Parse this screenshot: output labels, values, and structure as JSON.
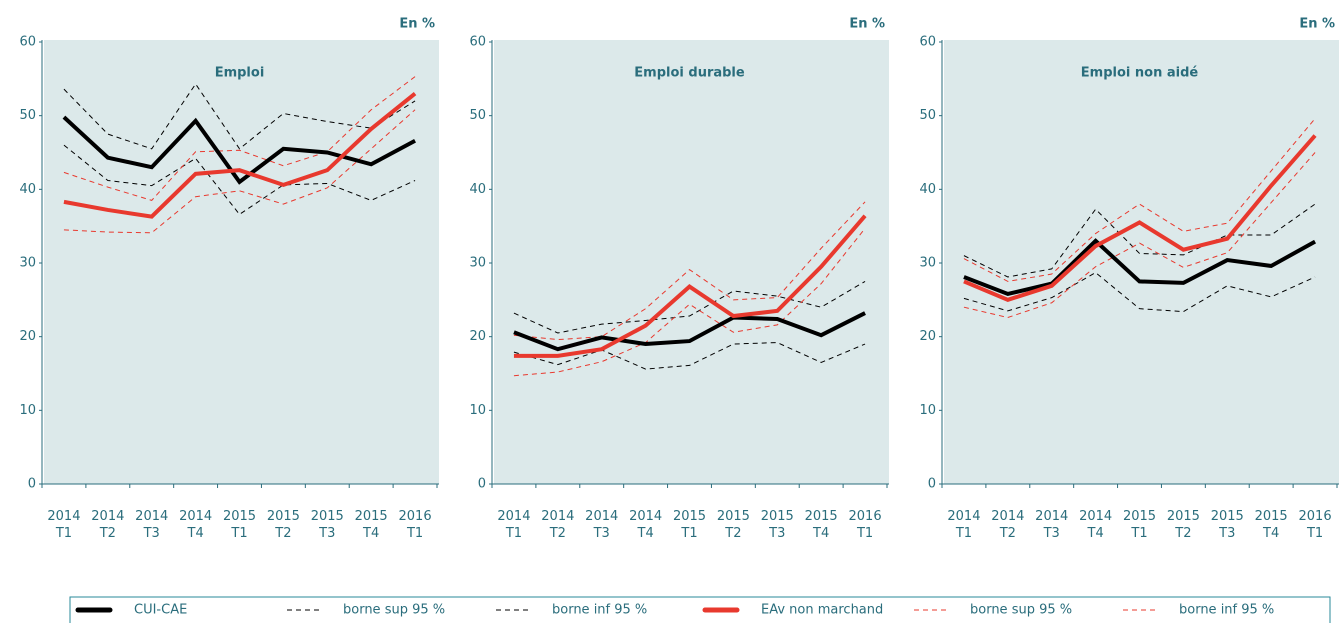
{
  "chart_data": [
    {
      "type": "line",
      "title": "Emploi",
      "unit": "En %",
      "categories": [
        "2014 T1",
        "2014 T2",
        "2014 T3",
        "2014 T4",
        "2015 T1",
        "2015 T2",
        "2015 T3",
        "2015 T4",
        "2016 T1"
      ],
      "ylim": [
        0,
        60
      ],
      "yticks": [
        0,
        10,
        20,
        30,
        40,
        50,
        60
      ],
      "series": [
        {
          "name": "CUI-CAE",
          "color": "#000000",
          "dashed": false,
          "values": [
            49.8,
            44.3,
            43.0,
            49.3,
            41.0,
            45.5,
            45.0,
            43.4,
            46.6
          ]
        },
        {
          "name": "borne sup 95 %",
          "color": "#000000",
          "dashed": true,
          "values": [
            53.6,
            47.5,
            45.5,
            54.3,
            45.5,
            50.3,
            49.2,
            48.3,
            52.0
          ]
        },
        {
          "name": "borne inf 95 %",
          "color": "#000000",
          "dashed": true,
          "values": [
            46.0,
            41.2,
            40.5,
            44.2,
            36.6,
            40.6,
            40.8,
            38.5,
            41.2
          ]
        },
        {
          "name": "EAv non marchand",
          "color": "#e8392e",
          "dashed": false,
          "values": [
            38.3,
            37.2,
            36.3,
            42.1,
            42.6,
            40.6,
            42.6,
            48.2,
            53.0
          ]
        },
        {
          "name": "borne sup 95 %",
          "color": "#e8392e",
          "dashed": true,
          "values": [
            42.3,
            40.3,
            38.5,
            45.1,
            45.3,
            43.2,
            45.1,
            50.8,
            55.3
          ]
        },
        {
          "name": "borne inf 95 %",
          "color": "#e8392e",
          "dashed": true,
          "values": [
            34.5,
            34.2,
            34.1,
            39.0,
            39.8,
            38.0,
            40.2,
            45.5,
            50.8
          ]
        }
      ]
    },
    {
      "type": "line",
      "title": "Emploi durable",
      "unit": "En %",
      "categories": [
        "2014 T1",
        "2014 T2",
        "2014 T3",
        "2014 T4",
        "2015 T1",
        "2015 T2",
        "2015 T3",
        "2015 T4",
        "2016 T1"
      ],
      "ylim": [
        0,
        60
      ],
      "yticks": [
        0,
        10,
        20,
        30,
        40,
        50,
        60
      ],
      "series": [
        {
          "name": "CUI-CAE",
          "color": "#000000",
          "dashed": false,
          "values": [
            20.6,
            18.3,
            19.9,
            19.0,
            19.4,
            22.6,
            22.4,
            20.2,
            23.2
          ]
        },
        {
          "name": "borne sup 95 %",
          "color": "#000000",
          "dashed": true,
          "values": [
            23.2,
            20.5,
            21.7,
            22.2,
            22.8,
            26.2,
            25.5,
            24.0,
            27.5
          ]
        },
        {
          "name": "borne inf 95 %",
          "color": "#000000",
          "dashed": true,
          "values": [
            17.9,
            16.2,
            18.2,
            15.6,
            16.1,
            19.0,
            19.2,
            16.5,
            19.0
          ]
        },
        {
          "name": "EAv non marchand",
          "color": "#e8392e",
          "dashed": false,
          "values": [
            17.4,
            17.4,
            18.3,
            21.5,
            26.8,
            22.8,
            23.5,
            29.5,
            36.4
          ]
        },
        {
          "name": "borne sup 95 %",
          "color": "#e8392e",
          "dashed": true,
          "values": [
            20.2,
            19.6,
            20.0,
            23.8,
            29.1,
            25.0,
            25.3,
            32.0,
            38.3
          ]
        },
        {
          "name": "borne inf 95 %",
          "color": "#e8392e",
          "dashed": true,
          "values": [
            14.7,
            15.2,
            16.6,
            19.2,
            24.4,
            20.6,
            21.6,
            27.2,
            34.7
          ]
        }
      ]
    },
    {
      "type": "line",
      "title": "Emploi non aidé",
      "unit": "En %",
      "categories": [
        "2014 T1",
        "2014 T2",
        "2014 T3",
        "2014 T4",
        "2015 T1",
        "2015 T2",
        "2015 T3",
        "2015 T4",
        "2016 T1"
      ],
      "ylim": [
        0,
        60
      ],
      "yticks": [
        0,
        10,
        20,
        30,
        40,
        50,
        60
      ],
      "series": [
        {
          "name": "CUI-CAE",
          "color": "#000000",
          "dashed": false,
          "values": [
            28.1,
            25.8,
            27.2,
            33.0,
            27.5,
            27.3,
            30.4,
            29.6,
            32.9
          ]
        },
        {
          "name": "borne sup 95 %",
          "color": "#000000",
          "dashed": true,
          "values": [
            31.0,
            28.1,
            29.2,
            37.3,
            31.3,
            31.1,
            33.8,
            33.8,
            38.0
          ]
        },
        {
          "name": "borne inf 95 %",
          "color": "#000000",
          "dashed": true,
          "values": [
            25.2,
            23.5,
            25.3,
            28.7,
            23.8,
            23.4,
            26.9,
            25.4,
            28.1
          ]
        },
        {
          "name": "EAv non marchand",
          "color": "#e8392e",
          "dashed": false,
          "values": [
            27.5,
            25.0,
            26.9,
            32.3,
            35.5,
            31.8,
            33.3,
            40.5,
            47.3
          ]
        },
        {
          "name": "borne sup 95 %",
          "color": "#e8392e",
          "dashed": true,
          "values": [
            30.6,
            27.5,
            28.5,
            34.0,
            38.0,
            34.3,
            35.4,
            42.5,
            49.6
          ]
        },
        {
          "name": "borne inf 95 %",
          "color": "#e8392e",
          "dashed": true,
          "values": [
            24.0,
            22.6,
            24.6,
            29.5,
            32.7,
            29.4,
            31.4,
            38.2,
            45.0
          ]
        }
      ]
    }
  ]
}
